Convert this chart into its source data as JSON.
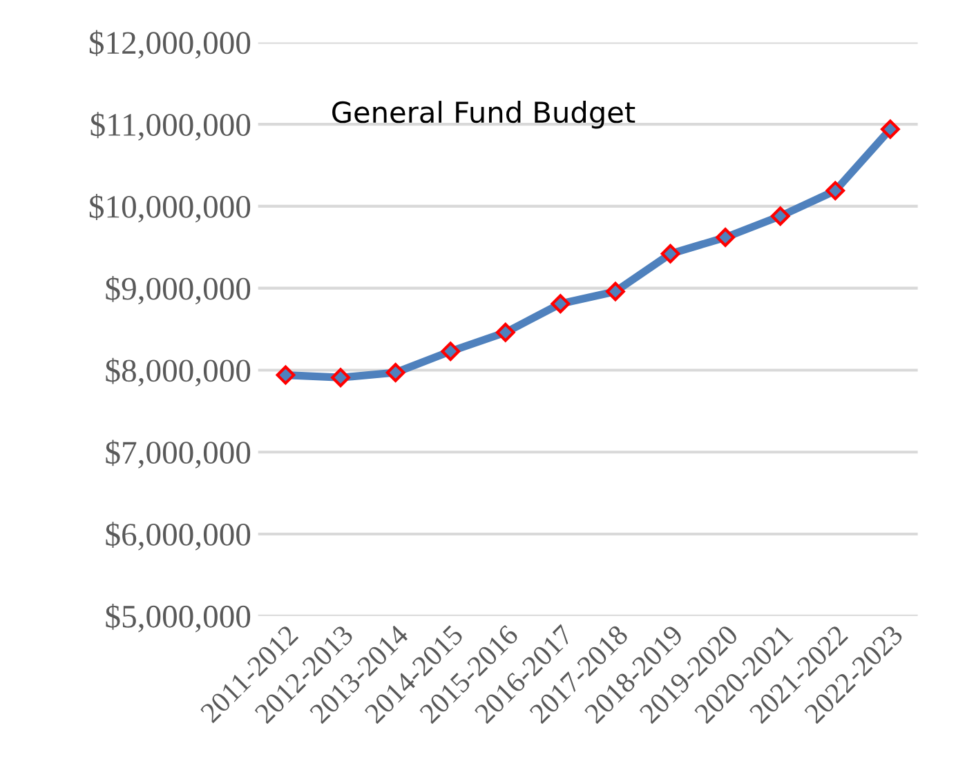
{
  "chart_data": {
    "type": "line",
    "title": "General Fund Budget",
    "categories": [
      "2011-2012",
      "2012-2013",
      "2013-2014",
      "2014-2015",
      "2015-2016",
      "2016-2017",
      "2017-2018",
      "2018-2019",
      "2019-2020",
      "2020-2021",
      "2021-2022",
      "2022-2023"
    ],
    "series": [
      {
        "color": "#4f81bd",
        "values": [
          7940000,
          7910000,
          7970000,
          8230000,
          8460000,
          8810000,
          8960000,
          9420000,
          9620000,
          9880000,
          10190000,
          10940000
        ]
      }
    ],
    "ylim": [
      5000000,
      12000000
    ],
    "yticks": [
      {
        "value": 5000000,
        "label": "$5,000,000"
      },
      {
        "value": 6000000,
        "label": "$6,000,000"
      },
      {
        "value": 7000000,
        "label": "$7,000,000"
      },
      {
        "value": 8000000,
        "label": "$8,000,000"
      },
      {
        "value": 9000000,
        "label": "$9,000,000"
      },
      {
        "value": 10000000,
        "label": "$10,000,000"
      },
      {
        "value": 11000000,
        "label": "$11,000,000"
      },
      {
        "value": 12000000,
        "label": "$12,000,000"
      }
    ],
    "grid": "y",
    "marker": "diamond",
    "line_style": "solid"
  }
}
